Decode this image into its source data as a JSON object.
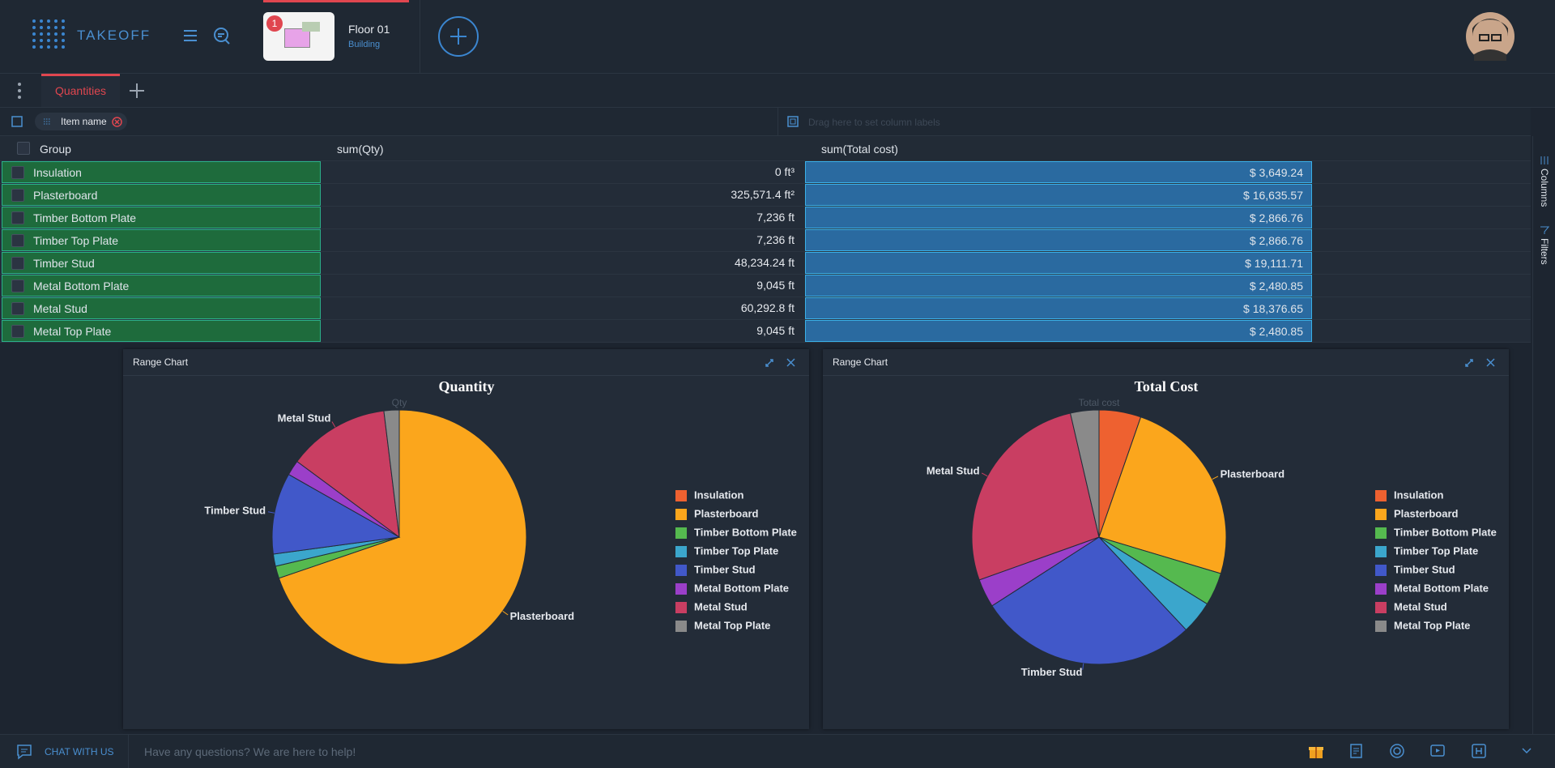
{
  "header": {
    "logo": "TAKEOFF",
    "floor": {
      "badge": "1",
      "title": "Floor 01",
      "subtitle": "Building"
    }
  },
  "tabs": [
    "Quantities"
  ],
  "filters": {
    "chip": "Item name",
    "column_hint": "Drag here to set column labels"
  },
  "table": {
    "columns": [
      "Group",
      "sum(Qty)",
      "sum(Total cost)"
    ],
    "rows": [
      [
        "Insulation",
        "0 ft³",
        "$ 3,649.24"
      ],
      [
        "Plasterboard",
        "325,571.4 ft²",
        "$ 16,635.57"
      ],
      [
        "Timber Bottom Plate",
        "7,236 ft",
        "$ 2,866.76"
      ],
      [
        "Timber Top Plate",
        "7,236 ft",
        "$ 2,866.76"
      ],
      [
        "Timber Stud",
        "48,234.24 ft",
        "$ 19,111.71"
      ],
      [
        "Metal Bottom Plate",
        "9,045 ft",
        "$ 2,480.85"
      ],
      [
        "Metal Stud",
        "60,292.8 ft",
        "$ 18,376.65"
      ],
      [
        "Metal Top Plate",
        "9,045 ft",
        "$ 2,480.85"
      ]
    ]
  },
  "sidebar": [
    "Columns",
    "Filters"
  ],
  "chart_data": [
    {
      "type": "pie",
      "panel_title": "Range Chart",
      "title": "Quantity",
      "series_name": "Qty",
      "categories": [
        "Insulation",
        "Plasterboard",
        "Timber Bottom Plate",
        "Timber Top Plate",
        "Timber Stud",
        "Metal Bottom Plate",
        "Metal Stud",
        "Metal Top Plate"
      ],
      "values": [
        0,
        325571.4,
        7236,
        7236,
        48234.24,
        9045,
        60292.8,
        9045
      ],
      "colors": [
        "#ee6130",
        "#fba61c",
        "#55b94f",
        "#3ba6cc",
        "#4158c9",
        "#9b3fc9",
        "#c93e62",
        "#8a8a8a"
      ],
      "legend": "right"
    },
    {
      "type": "pie",
      "panel_title": "Range Chart",
      "title": "Total Cost",
      "series_name": "Total cost",
      "categories": [
        "Insulation",
        "Plasterboard",
        "Timber Bottom Plate",
        "Timber Top Plate",
        "Timber Stud",
        "Metal Bottom Plate",
        "Metal Stud",
        "Metal Top Plate"
      ],
      "values": [
        3649.24,
        16635.57,
        2866.76,
        2866.76,
        19111.71,
        2480.85,
        18376.65,
        2480.85
      ],
      "colors": [
        "#ee6130",
        "#fba61c",
        "#55b94f",
        "#3ba6cc",
        "#4158c9",
        "#9b3fc9",
        "#c93e62",
        "#8a8a8a"
      ],
      "legend": "right"
    }
  ],
  "footer": {
    "chat": "CHAT WITH US",
    "placeholder": "Have any questions? We are here to help!"
  }
}
